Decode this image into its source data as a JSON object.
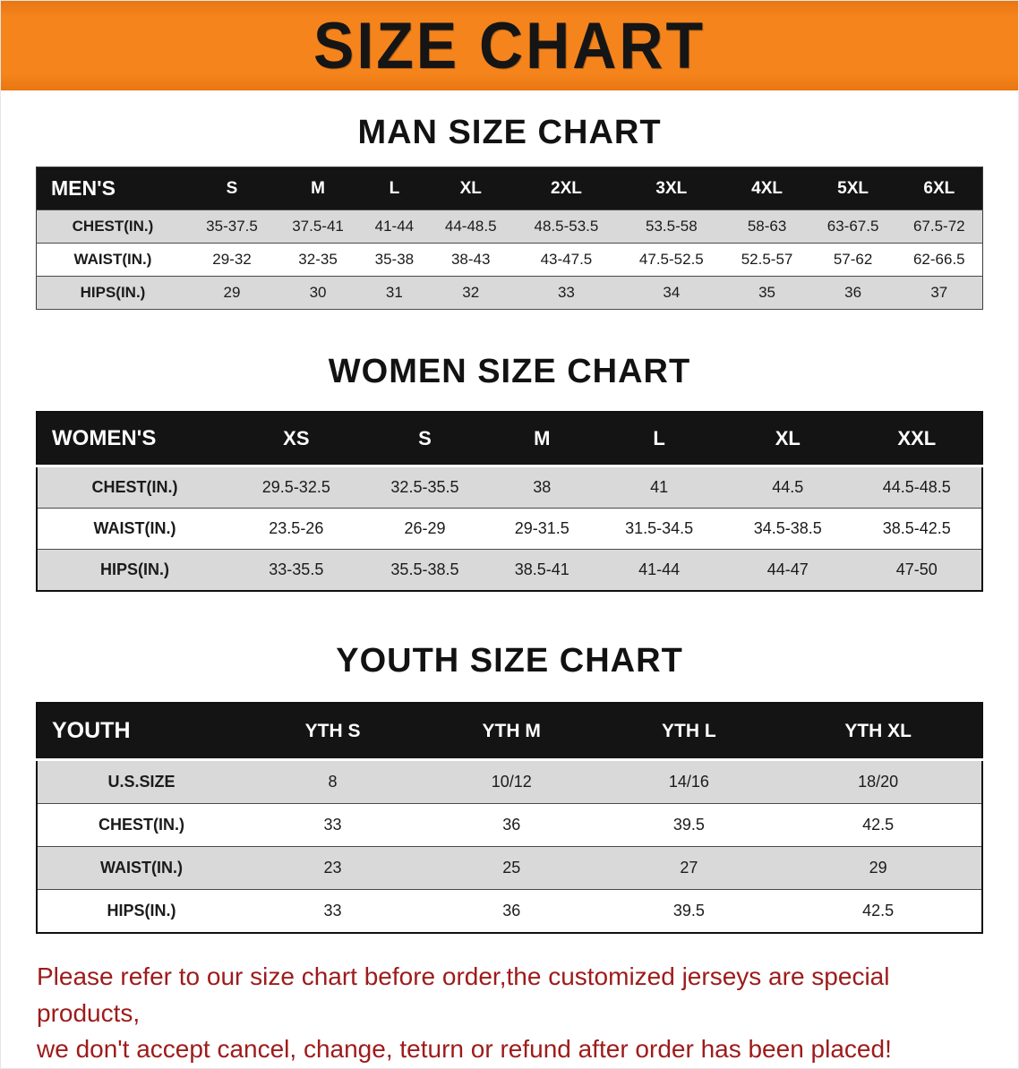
{
  "banner": {
    "title": "SIZE CHART"
  },
  "colors": {
    "banner_bg": "#f6841c",
    "header_bg": "#141414",
    "row_shade": "#d9d9d9",
    "footer_red": "#9e1b1b"
  },
  "sections": [
    {
      "heading": "MAN SIZE CHART",
      "table": {
        "header": [
          "MEN'S",
          "S",
          "M",
          "L",
          "XL",
          "2XL",
          "3XL",
          "4XL",
          "5XL",
          "6XL"
        ],
        "rows": [
          [
            "CHEST(IN.)",
            "35-37.5",
            "37.5-41",
            "41-44",
            "44-48.5",
            "48.5-53.5",
            "53.5-58",
            "58-63",
            "63-67.5",
            "67.5-72"
          ],
          [
            "WAIST(IN.)",
            "29-32",
            "32-35",
            "35-38",
            "38-43",
            "43-47.5",
            "47.5-52.5",
            "52.5-57",
            "57-62",
            "62-66.5"
          ],
          [
            "HIPS(IN.)",
            "29",
            "30",
            "31",
            "32",
            "33",
            "34",
            "35",
            "36",
            "37"
          ]
        ]
      }
    },
    {
      "heading": "WOMEN SIZE CHART",
      "table": {
        "header": [
          "WOMEN'S",
          "XS",
          "S",
          "M",
          "L",
          "XL",
          "XXL"
        ],
        "rows": [
          [
            "CHEST(IN.)",
            "29.5-32.5",
            "32.5-35.5",
            "38",
            "41",
            "44.5",
            "44.5-48.5"
          ],
          [
            "WAIST(IN.)",
            "23.5-26",
            "26-29",
            "29-31.5",
            "31.5-34.5",
            "34.5-38.5",
            "38.5-42.5"
          ],
          [
            "HIPS(IN.)",
            "33-35.5",
            "35.5-38.5",
            "38.5-41",
            "41-44",
            "44-47",
            "47-50"
          ]
        ]
      }
    },
    {
      "heading": "YOUTH SIZE CHART",
      "table": {
        "header": [
          "YOUTH",
          "YTH S",
          "YTH M",
          "YTH L",
          "YTH XL"
        ],
        "rows": [
          [
            "U.S.SIZE",
            "8",
            "10/12",
            "14/16",
            "18/20"
          ],
          [
            "CHEST(IN.)",
            "33",
            "36",
            "39.5",
            "42.5"
          ],
          [
            "WAIST(IN.)",
            "23",
            "25",
            "27",
            "29"
          ],
          [
            "HIPS(IN.)",
            "33",
            "36",
            "39.5",
            "42.5"
          ]
        ]
      }
    }
  ],
  "footer": {
    "line1": "Please refer to our size chart before order,the customized jerseys are special products,",
    "line2": "we don't accept cancel, change, teturn or refund after order has been placed!"
  }
}
